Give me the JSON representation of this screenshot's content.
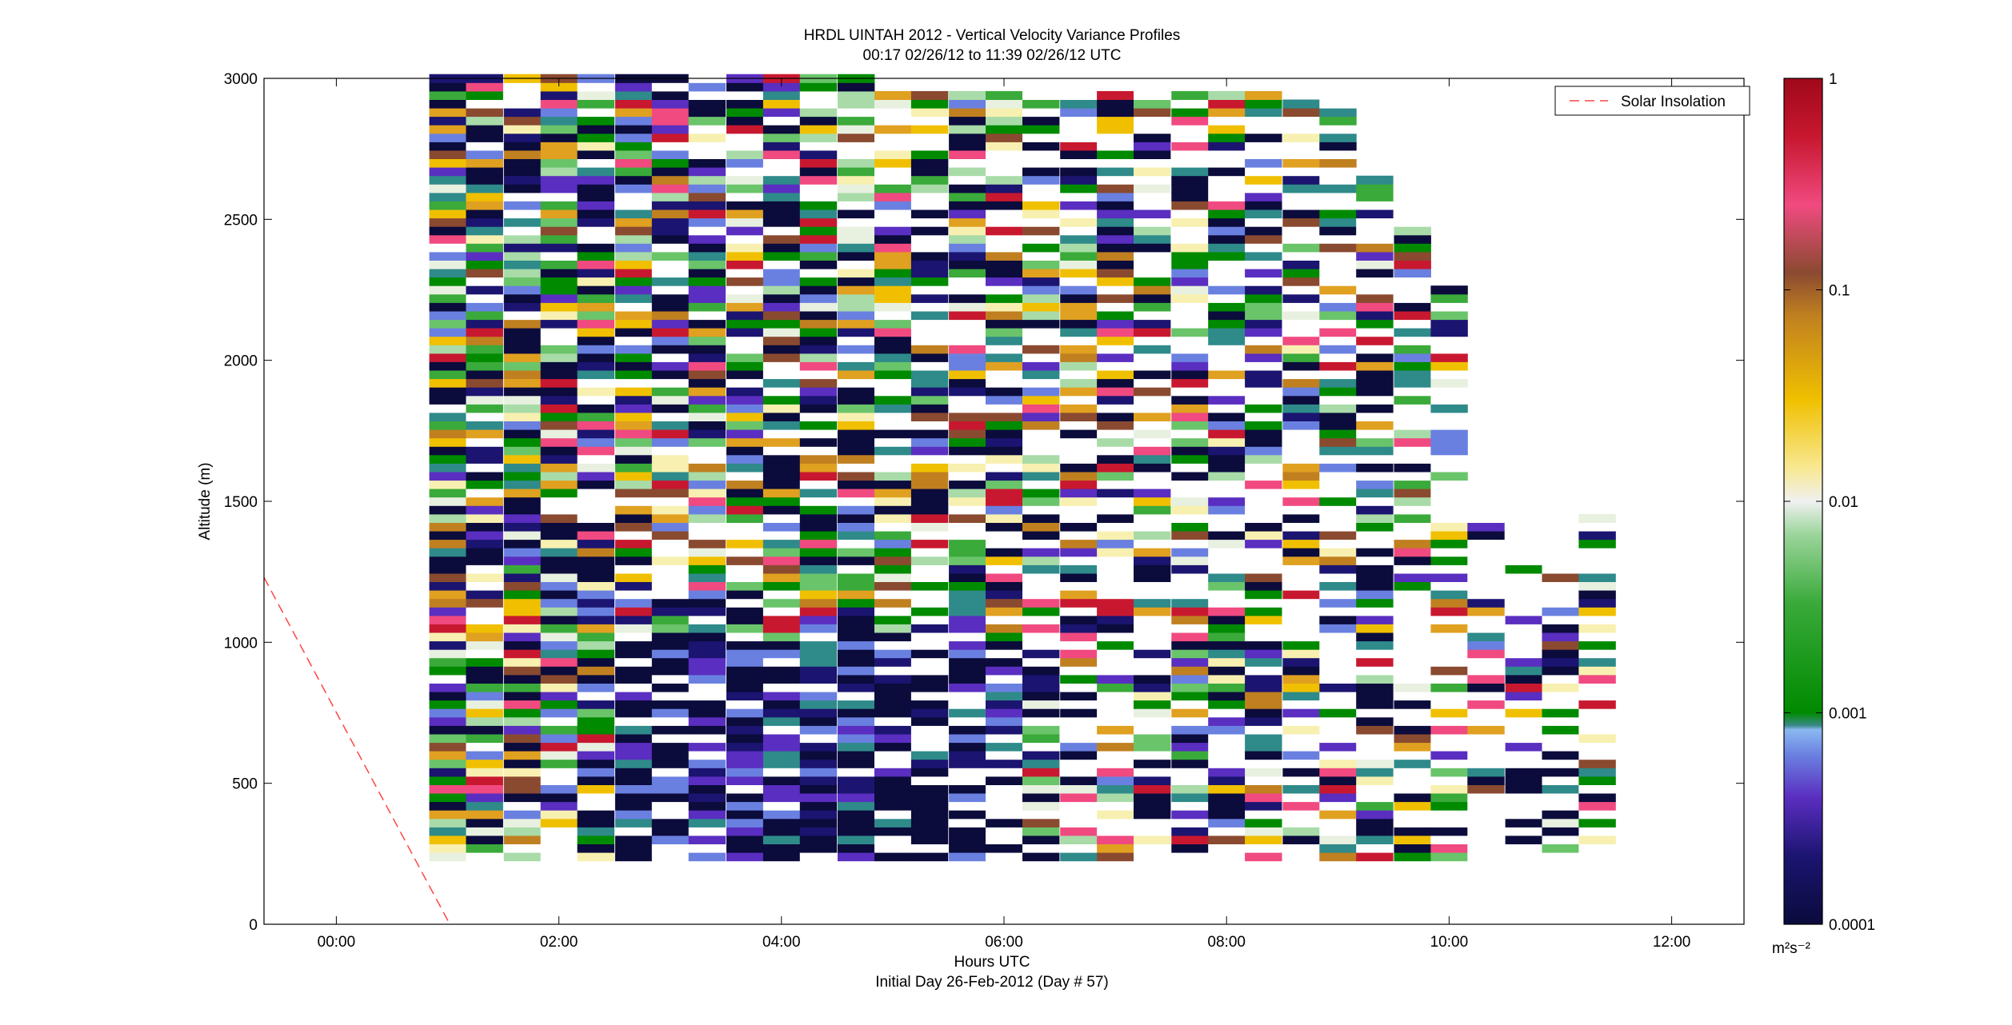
{
  "chart_data": {
    "type": "heatmap",
    "title": "HRDL UINTAH 2012 - Vertical Velocity Variance Profiles",
    "subtitle": "00:17 02/26/12 to 11:39 02/26/12  UTC",
    "xlabel": "Hours UTC",
    "xlabel2": "Initial Day 26-Feb-2012 (Day # 57)",
    "ylabel": "Altitude (m)",
    "xlim": [
      -0.65,
      12.65
    ],
    "ylim": [
      0,
      3000
    ],
    "x_ticks": [
      {
        "value": 0,
        "label": "00:00"
      },
      {
        "value": 2,
        "label": "02:00"
      },
      {
        "value": 4,
        "label": "04:00"
      },
      {
        "value": 6,
        "label": "06:00"
      },
      {
        "value": 8,
        "label": "08:00"
      },
      {
        "value": 10,
        "label": "10:00"
      },
      {
        "value": 12,
        "label": "12:00"
      }
    ],
    "y_ticks": [
      {
        "value": 0,
        "label": "0"
      },
      {
        "value": 500,
        "label": "500"
      },
      {
        "value": 1000,
        "label": "1000"
      },
      {
        "value": 1500,
        "label": "1500"
      },
      {
        "value": 2000,
        "label": "2000"
      },
      {
        "value": 2500,
        "label": "2500"
      },
      {
        "value": 3000,
        "label": "3000"
      }
    ],
    "colorbar": {
      "scale": "log",
      "range": [
        0.0001,
        1
      ],
      "unit": "m²s⁻²",
      "ticks": [
        {
          "value": 0.0001,
          "label": "0.0001"
        },
        {
          "value": 0.001,
          "label": "0.001"
        },
        {
          "value": 0.01,
          "label": "0.01"
        },
        {
          "value": 0.1,
          "label": "0.1"
        },
        {
          "value": 1,
          "label": "1"
        }
      ]
    },
    "legend": {
      "position": "top-right",
      "entries": [
        {
          "name": "Solar Insolation",
          "style": "dashed",
          "color": "#ff4444"
        }
      ]
    },
    "series": [
      {
        "name": "Solar Insolation",
        "type": "line",
        "points": [
          [
            -0.65,
            1230
          ],
          [
            1.02,
            0
          ]
        ]
      }
    ],
    "profile_times": [
      1.0,
      1.33,
      1.67,
      2.0,
      2.33,
      2.67,
      3.0,
      3.33,
      3.67,
      4.0,
      4.33,
      4.67,
      5.0,
      5.33,
      5.67,
      6.0,
      6.33,
      6.67,
      7.0,
      7.33,
      7.67,
      8.0,
      8.33,
      8.67,
      9.0,
      9.33,
      9.67,
      10.0,
      10.33,
      10.67,
      11.0,
      11.33
    ],
    "profile_tops_m": [
      3000,
      3000,
      3000,
      3000,
      3000,
      3000,
      3000,
      3000,
      3000,
      3000,
      3000,
      3000,
      2950,
      2950,
      2950,
      2950,
      2950,
      2950,
      2950,
      2950,
      2950,
      2950,
      2950,
      2900,
      2900,
      2650,
      2500,
      2250,
      1450,
      1300,
      1250,
      1450
    ],
    "profile_bottom_m": 225,
    "gate_spacing_m": 30
  }
}
